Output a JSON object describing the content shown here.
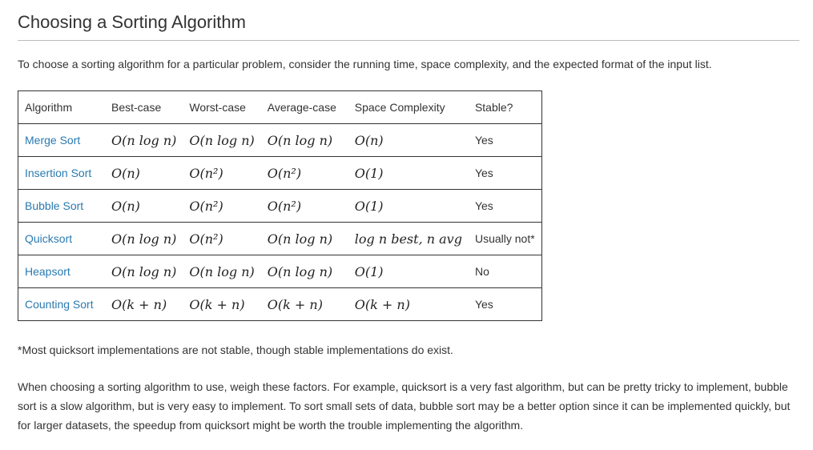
{
  "title": "Choosing a Sorting Algorithm",
  "intro": "To choose a sorting algorithm for a particular problem, consider the running time, space complexity, and the expected format of the input list.",
  "table": {
    "headers": [
      "Algorithm",
      "Best-case",
      "Worst-case",
      "Average-case",
      "Space Complexity",
      "Stable?"
    ],
    "rows": [
      {
        "name": "Merge Sort",
        "best": "O(n log n)",
        "worst": "O(n log n)",
        "average": "O(n log n)",
        "space": "O(n)",
        "stable": "Yes"
      },
      {
        "name": "Insertion Sort",
        "best": "O(n)",
        "worst": "O(n²)",
        "average": "O(n²)",
        "space": "O(1)",
        "stable": "Yes"
      },
      {
        "name": "Bubble Sort",
        "best": "O(n)",
        "worst": "O(n²)",
        "average": "O(n²)",
        "space": "O(1)",
        "stable": "Yes"
      },
      {
        "name": "Quicksort",
        "best": "O(n log n)",
        "worst": "O(n²)",
        "average": "O(n log n)",
        "space": "log n best, n avg",
        "stable": "Usually not*"
      },
      {
        "name": "Heapsort",
        "best": "O(n log n)",
        "worst": "O(n log n)",
        "average": "O(n log n)",
        "space": "O(1)",
        "stable": "No"
      },
      {
        "name": "Counting Sort",
        "best": "O(k + n)",
        "worst": "O(k + n)",
        "average": "O(k + n)",
        "space": "O(k + n)",
        "stable": "Yes"
      }
    ]
  },
  "footnote": "*Most quicksort implementations are not stable, though stable implementations do exist.",
  "body": "When choosing a sorting algorithm to use, weigh these factors. For example, quicksort is a very fast algorithm, but can be pretty tricky to implement, bubble sort is a slow algorithm, but is very easy to implement. To sort small sets of data, bubble sort may be a better option since it can be implemented quickly, but for larger datasets, the speedup from quicksort might be worth the trouble implementing the algorithm.",
  "colors": {
    "link": "#2a7ab0",
    "text": "#333333",
    "rule": "#bbbbbb"
  }
}
